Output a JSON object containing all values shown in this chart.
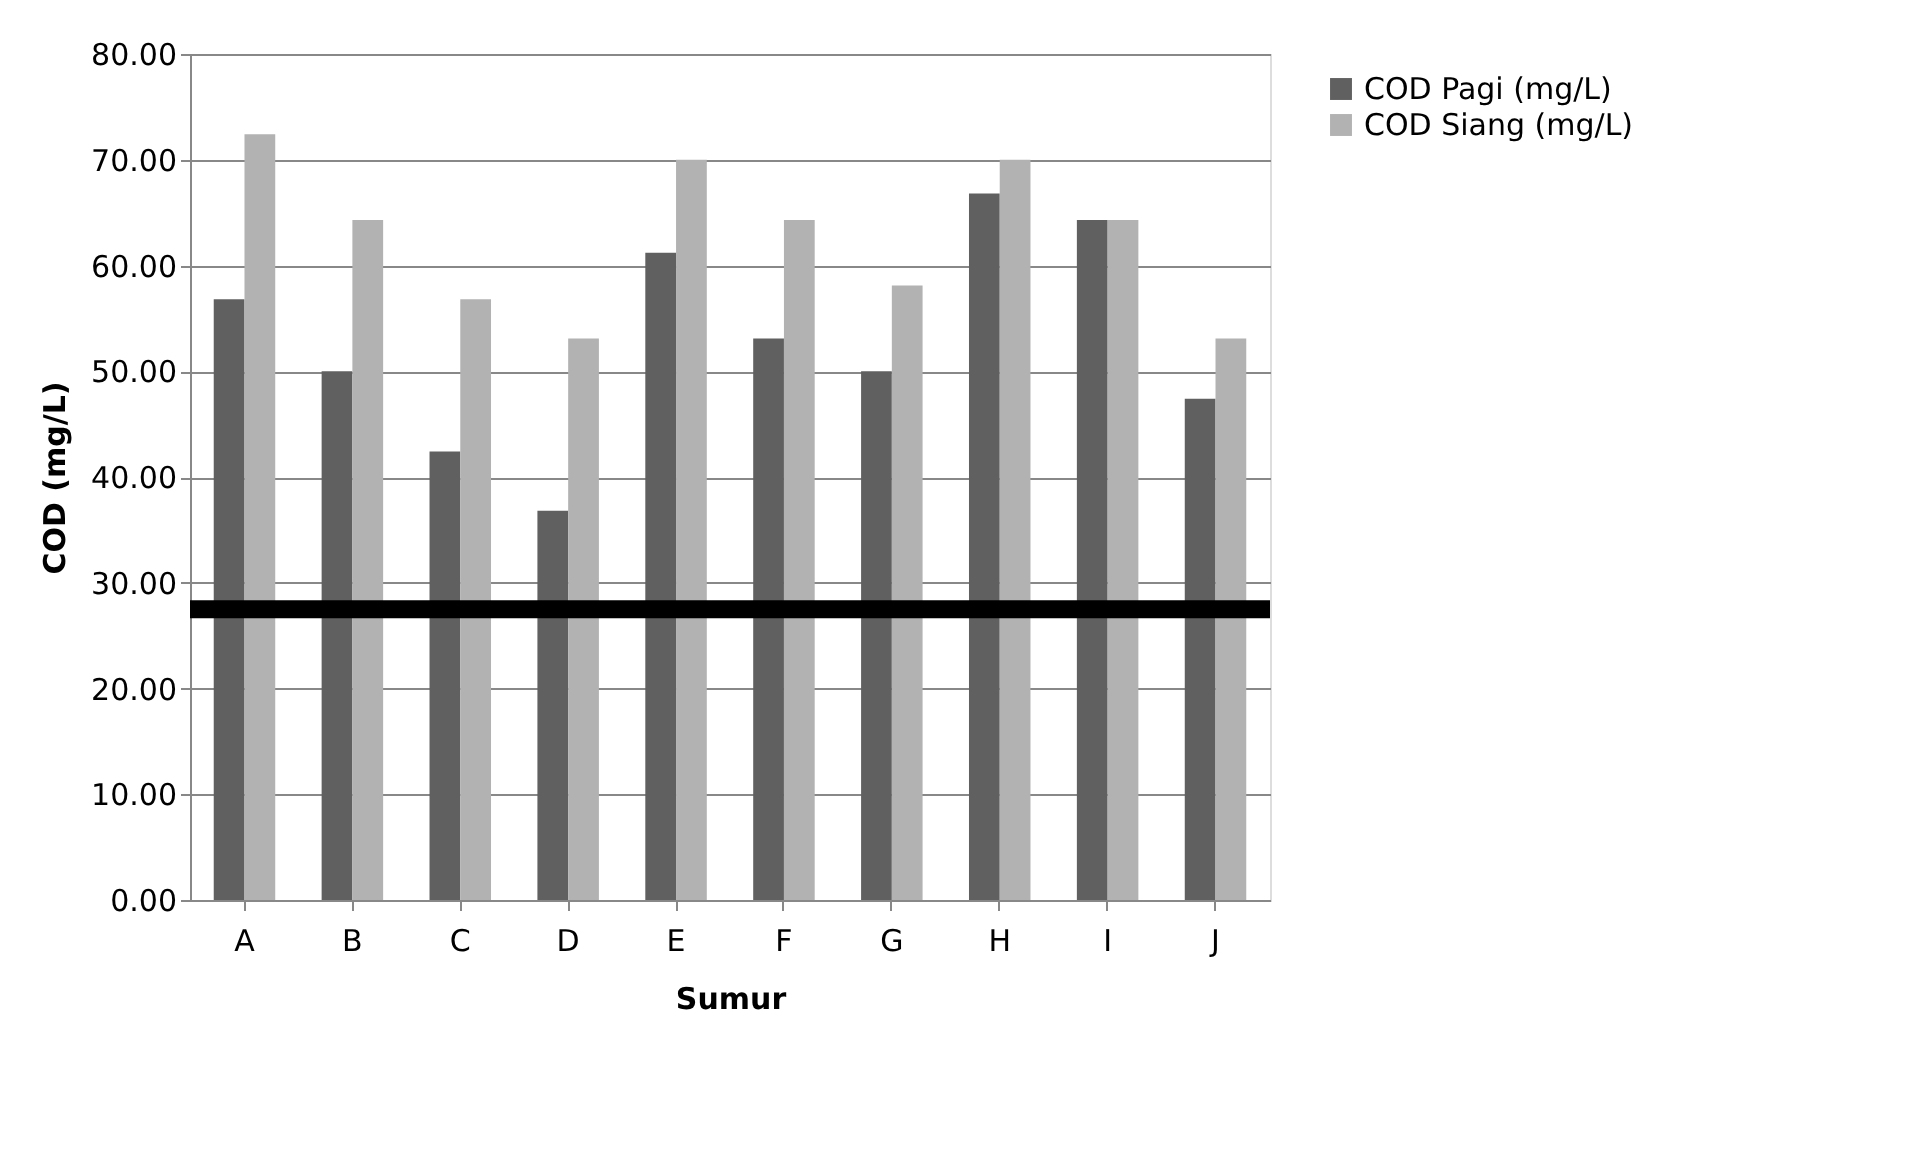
{
  "chart_data": {
    "type": "bar",
    "xlabel": "Sumur",
    "ylabel": "COD (mg/L)",
    "categories": [
      "A",
      "B",
      "C",
      "D",
      "E",
      "F",
      "G",
      "H",
      "I",
      "J"
    ],
    "series": [
      {
        "name": "COD Pagi (mg/L)",
        "color": "#606060",
        "values": [
          56.8,
          50.0,
          42.4,
          36.8,
          61.2,
          53.1,
          50.0,
          66.8,
          64.3,
          47.4
        ]
      },
      {
        "name": "COD Siang (mg/L)",
        "color": "#b2b2b2",
        "values": [
          72.4,
          64.3,
          56.8,
          53.1,
          70.0,
          64.3,
          58.1,
          70.0,
          64.3,
          53.1
        ]
      }
    ],
    "ylim": [
      0,
      80
    ],
    "yticks": [
      {
        "value": 0,
        "label": "0.00"
      },
      {
        "value": 10,
        "label": "10.00"
      },
      {
        "value": 20,
        "label": "20.00"
      },
      {
        "value": 30,
        "label": "30.00"
      },
      {
        "value": 40,
        "label": "40.00"
      },
      {
        "value": 50,
        "label": "50.00"
      },
      {
        "value": 60,
        "label": "60.00"
      },
      {
        "value": 70,
        "label": "70.00"
      },
      {
        "value": 80,
        "label": "80.00"
      }
    ],
    "ref_lines": [
      {
        "axis": "y",
        "value": 27.5,
        "color": "#000000",
        "line_style": "solid"
      }
    ],
    "grid": "y",
    "legend": "right"
  }
}
